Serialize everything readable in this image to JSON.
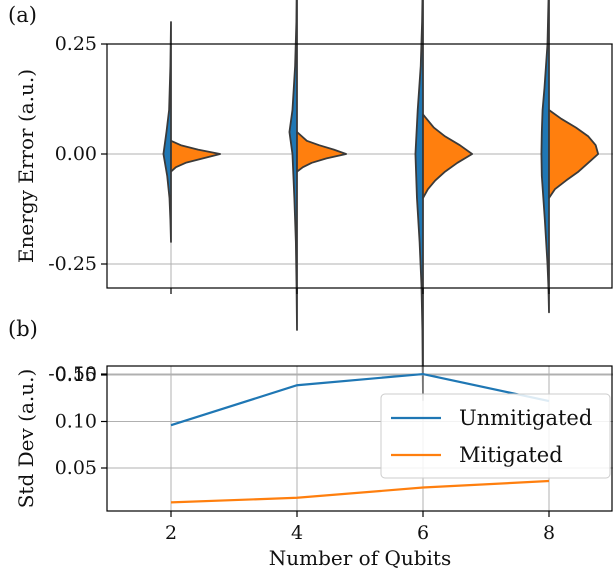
{
  "chart_data": [
    {
      "panel_label": "(a)",
      "type": "violin",
      "ylabel": "Energy Error (a.u.)",
      "x_ticks": [
        2,
        4,
        6,
        8
      ],
      "y_ticks": [
        0.25,
        0.0,
        -0.25,
        -0.5
      ],
      "y_tick_labels": [
        "0.25",
        "0.00",
        "-0.25",
        "-0.50"
      ],
      "ylim": [
        -0.61,
        0.5
      ],
      "grid": true,
      "series": [
        {
          "colour": "#1f77b4",
          "side": "left",
          "violins": [
            {
              "x": 2,
              "ymin": -0.2,
              "ymax": 0.3,
              "spread": 0.12,
              "profile": [
                [
                  -0.2,
                  0.0
                ],
                [
                  -0.15,
                  0.08
                ],
                [
                  -0.1,
                  0.2
                ],
                [
                  -0.05,
                  0.5
                ],
                [
                  0.0,
                  1.0
                ],
                [
                  0.05,
                  0.6
                ],
                [
                  0.1,
                  0.25
                ],
                [
                  0.2,
                  0.08
                ],
                [
                  0.3,
                  0.0
                ]
              ]
            },
            {
              "x": 4,
              "ymin": -0.4,
              "ymax": 0.45,
              "spread": 0.12,
              "profile": [
                [
                  -0.4,
                  0.0
                ],
                [
                  -0.3,
                  0.06
                ],
                [
                  -0.2,
                  0.15
                ],
                [
                  -0.1,
                  0.35
                ],
                [
                  0.0,
                  0.6
                ],
                [
                  0.05,
                  1.0
                ],
                [
                  0.1,
                  0.6
                ],
                [
                  0.2,
                  0.25
                ],
                [
                  0.3,
                  0.08
                ],
                [
                  0.45,
                  0.0
                ]
              ]
            },
            {
              "x": 6,
              "ymin": -0.56,
              "ymax": 0.43,
              "spread": 0.12,
              "profile": [
                [
                  -0.56,
                  0.0
                ],
                [
                  -0.4,
                  0.08
                ],
                [
                  -0.3,
                  0.2
                ],
                [
                  -0.2,
                  0.45
                ],
                [
                  -0.1,
                  0.8
                ],
                [
                  0.0,
                  1.0
                ],
                [
                  0.1,
                  0.7
                ],
                [
                  0.2,
                  0.3
                ],
                [
                  0.3,
                  0.12
                ],
                [
                  0.43,
                  0.0
                ]
              ]
            },
            {
              "x": 8,
              "ymin": -0.36,
              "ymax": 0.4,
              "spread": 0.12,
              "profile": [
                [
                  -0.36,
                  0.0
                ],
                [
                  -0.3,
                  0.08
                ],
                [
                  -0.25,
                  0.2
                ],
                [
                  -0.15,
                  0.55
                ],
                [
                  -0.05,
                  0.95
                ],
                [
                  0.0,
                  1.0
                ],
                [
                  0.05,
                  0.95
                ],
                [
                  0.1,
                  0.85
                ],
                [
                  0.15,
                  0.6
                ],
                [
                  0.25,
                  0.2
                ],
                [
                  0.4,
                  0.0
                ]
              ]
            }
          ]
        },
        {
          "colour": "#ff7f0e",
          "side": "right",
          "violins": [
            {
              "x": 2,
              "ymin": -0.04,
              "ymax": 0.03,
              "spread": 0.78,
              "profile": [
                [
                  -0.04,
                  0.0
                ],
                [
                  -0.03,
                  0.1
                ],
                [
                  -0.02,
                  0.3
                ],
                [
                  -0.01,
                  0.65
                ],
                [
                  0.0,
                  1.0
                ],
                [
                  0.01,
                  0.55
                ],
                [
                  0.02,
                  0.2
                ],
                [
                  0.03,
                  0.0
                ]
              ]
            },
            {
              "x": 4,
              "ymin": -0.04,
              "ymax": 0.05,
              "spread": 0.78,
              "profile": [
                [
                  -0.04,
                  0.0
                ],
                [
                  -0.03,
                  0.12
                ],
                [
                  -0.02,
                  0.3
                ],
                [
                  -0.01,
                  0.6
                ],
                [
                  0.0,
                  1.0
                ],
                [
                  0.01,
                  0.75
                ],
                [
                  0.02,
                  0.45
                ],
                [
                  0.03,
                  0.2
                ],
                [
                  0.05,
                  0.0
                ]
              ]
            },
            {
              "x": 6,
              "ymin": -0.1,
              "ymax": 0.09,
              "spread": 0.78,
              "profile": [
                [
                  -0.1,
                  0.0
                ],
                [
                  -0.08,
                  0.1
                ],
                [
                  -0.06,
                  0.25
                ],
                [
                  -0.04,
                  0.45
                ],
                [
                  -0.02,
                  0.7
                ],
                [
                  0.0,
                  1.0
                ],
                [
                  0.02,
                  0.75
                ],
                [
                  0.04,
                  0.45
                ],
                [
                  0.06,
                  0.22
                ],
                [
                  0.09,
                  0.0
                ]
              ]
            },
            {
              "x": 8,
              "ymin": -0.1,
              "ymax": 0.1,
              "spread": 0.78,
              "profile": [
                [
                  -0.1,
                  0.0
                ],
                [
                  -0.08,
                  0.12
                ],
                [
                  -0.06,
                  0.35
                ],
                [
                  -0.04,
                  0.6
                ],
                [
                  -0.02,
                  0.8
                ],
                [
                  0.0,
                  1.0
                ],
                [
                  0.02,
                  0.95
                ],
                [
                  0.04,
                  0.8
                ],
                [
                  0.06,
                  0.55
                ],
                [
                  0.08,
                  0.25
                ],
                [
                  0.1,
                  0.0
                ]
              ]
            }
          ]
        }
      ]
    },
    {
      "panel_label": "(b)",
      "type": "line",
      "ylabel": "Std Dev (a.u.)",
      "xlabel": "Number of Qubits",
      "x": [
        2,
        4,
        6,
        8
      ],
      "x_ticks": [
        2,
        4,
        6,
        8
      ],
      "y_ticks": [
        0.15,
        0.1,
        0.05
      ],
      "y_tick_labels": [
        "0.15",
        "0.10",
        "0.05"
      ],
      "ylim": [
        0.005,
        0.157
      ],
      "xlim": [
        1,
        9
      ],
      "grid": true,
      "legend_position": "center-right",
      "series": [
        {
          "name": "Unmitigated",
          "colour": "#1f77b4",
          "values": [
            0.096,
            0.139,
            0.151,
            0.122
          ]
        },
        {
          "name": "Mitigated",
          "colour": "#ff7f0e",
          "values": [
            0.013,
            0.018,
            0.029,
            0.036
          ]
        }
      ]
    }
  ]
}
